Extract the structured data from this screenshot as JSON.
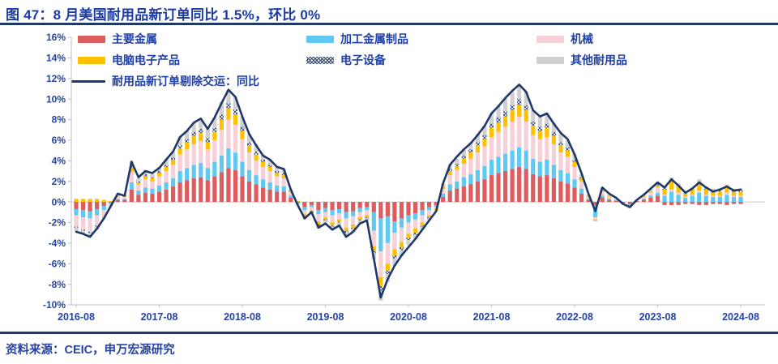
{
  "page": {
    "title": "图 47：8 月美国耐用品新订单同比 1.5%，环比 0%",
    "source": "资料来源：CEIC，申万宏源研究"
  },
  "colors": {
    "title_blue": "#1B3BA6",
    "text_blue": "#2545A5",
    "divider_navy": "#1F3864",
    "axis_gray": "#BFBFBF",
    "zero_gray": "#C9C9C9",
    "hatch": "#26406F"
  },
  "chart_data": {
    "type": "bar",
    "subtype": "stacked-monthly-bars-with-line",
    "title": "图 47：8 月美国耐用品新订单同比 1.5%，环比 0%",
    "xlabel": "",
    "ylabel": "",
    "ylim": [
      -10,
      16
    ],
    "grid": false,
    "legend_position": "top-left",
    "frequency": "monthly",
    "x_start": "2016-08",
    "x_end": "2024-08",
    "y_ticks": [
      {
        "value": 16,
        "label": "16%"
      },
      {
        "value": 14,
        "label": "14%"
      },
      {
        "value": 12,
        "label": "12%"
      },
      {
        "value": 10,
        "label": "10%"
      },
      {
        "value": 8,
        "label": "8%"
      },
      {
        "value": 6,
        "label": "6%"
      },
      {
        "value": 4,
        "label": "4%"
      },
      {
        "value": 2,
        "label": "2%"
      },
      {
        "value": 0,
        "label": "0%"
      },
      {
        "value": -2,
        "label": "-2%"
      },
      {
        "value": -4,
        "label": "-4%"
      },
      {
        "value": -6,
        "label": "-6%"
      },
      {
        "value": -8,
        "label": "-8%"
      },
      {
        "value": -10,
        "label": "-10%"
      }
    ],
    "x_ticks": [
      {
        "index": 0,
        "label": "2016-08"
      },
      {
        "index": 12,
        "label": "2017-08"
      },
      {
        "index": 24,
        "label": "2018-08"
      },
      {
        "index": 36,
        "label": "2019-08"
      },
      {
        "index": 48,
        "label": "2020-08"
      },
      {
        "index": 60,
        "label": "2021-08"
      },
      {
        "index": 72,
        "label": "2022-08"
      },
      {
        "index": 84,
        "label": "2023-08"
      },
      {
        "index": 96,
        "label": "2024-08"
      }
    ],
    "series": [
      {
        "key": "major-metals",
        "name": "主要金属",
        "type": "bar",
        "color": "#DE5C5E",
        "values": [
          -0.7,
          -0.8,
          -0.9,
          -0.7,
          -0.4,
          -0.1,
          0.2,
          0.2,
          1.2,
          0.7,
          0.9,
          0.8,
          1.0,
          1.2,
          1.5,
          1.9,
          2.1,
          2.3,
          2.4,
          2.1,
          2.5,
          2.9,
          3.3,
          3.1,
          2.5,
          2.0,
          1.7,
          1.4,
          1.2,
          1.0,
          1.0,
          0.4,
          -0.1,
          -0.5,
          -0.3,
          -0.8,
          -0.6,
          -0.8,
          -0.7,
          -1.0,
          -0.9,
          -0.6,
          -0.5,
          -1.0,
          -1.6,
          -1.4,
          -1.9,
          -1.6,
          -1.3,
          -1.1,
          -0.8,
          -0.5,
          -0.3,
          0.5,
          1.1,
          1.3,
          1.5,
          1.7,
          2.0,
          2.2,
          2.6,
          2.8,
          3.0,
          3.2,
          3.4,
          3.2,
          2.7,
          2.5,
          2.6,
          2.3,
          2.0,
          1.8,
          1.4,
          0.8,
          0.2,
          -0.3,
          0.4,
          0.2,
          0.1,
          -0.1,
          -0.2,
          0.1,
          0.2,
          0.4,
          0.6,
          -0.3,
          -0.3,
          -0.3,
          -0.2,
          -0.2,
          -0.3,
          -0.3,
          -0.2,
          -0.2,
          -0.3,
          -0.2,
          -0.2
        ]
      },
      {
        "key": "fabricated-metal",
        "name": "加工金属制品",
        "type": "bar",
        "color": "#5FC8F3",
        "values": [
          -0.6,
          -0.7,
          -0.7,
          -0.6,
          -0.4,
          -0.1,
          0.1,
          0.1,
          0.7,
          0.4,
          0.5,
          0.5,
          0.6,
          0.7,
          0.8,
          1.1,
          1.2,
          1.3,
          1.4,
          1.2,
          1.4,
          1.6,
          1.9,
          1.7,
          1.4,
          1.1,
          0.9,
          0.8,
          0.7,
          0.6,
          0.5,
          0.2,
          -0.1,
          -0.3,
          -0.2,
          -0.4,
          -0.4,
          -0.5,
          -0.4,
          -0.6,
          -0.5,
          -0.4,
          -0.3,
          -1.8,
          -3.2,
          -2.6,
          -1.1,
          -0.9,
          -0.7,
          -0.6,
          -0.5,
          -0.3,
          -0.2,
          0.3,
          0.6,
          0.7,
          0.9,
          1.0,
          1.1,
          1.3,
          1.5,
          1.6,
          1.7,
          1.8,
          1.9,
          1.8,
          1.5,
          1.4,
          1.5,
          1.3,
          1.1,
          1.0,
          0.8,
          0.5,
          0.1,
          -1.2,
          0.2,
          0.1,
          0.1,
          0.0,
          -0.1,
          0.0,
          0.1,
          0.2,
          0.3,
          0.6,
          1.0,
          0.7,
          0.4,
          0.6,
          0.9,
          0.6,
          0.5,
          0.5,
          0.7,
          0.5,
          0.5
        ]
      },
      {
        "key": "machinery",
        "name": "机械",
        "type": "bar",
        "color": "#F7CFD6",
        "values": [
          -1.1,
          -1.2,
          -1.3,
          -1.0,
          -0.6,
          -0.2,
          0.2,
          0.2,
          1.0,
          0.6,
          0.8,
          0.7,
          0.9,
          1.1,
          1.3,
          1.6,
          1.8,
          2.0,
          2.1,
          1.8,
          2.1,
          2.5,
          2.8,
          2.7,
          2.2,
          1.7,
          1.4,
          1.2,
          1.1,
          0.9,
          0.8,
          0.3,
          -0.1,
          -0.4,
          -0.3,
          -0.7,
          -0.5,
          -0.7,
          -0.6,
          -0.9,
          -0.8,
          -0.5,
          -0.5,
          -1.5,
          -2.5,
          -2.0,
          -1.6,
          -1.4,
          -1.1,
          -0.9,
          -0.7,
          -0.5,
          -0.2,
          0.5,
          0.9,
          1.1,
          1.3,
          1.5,
          1.7,
          1.9,
          2.2,
          2.4,
          2.6,
          2.8,
          3.0,
          2.8,
          2.3,
          2.2,
          2.2,
          2.0,
          1.7,
          1.6,
          1.2,
          0.7,
          0.2,
          -0.2,
          0.4,
          0.2,
          0.1,
          -0.1,
          -0.1,
          0.1,
          0.2,
          0.3,
          0.5,
          0.1,
          0.2,
          0.2,
          0.1,
          0.1,
          0.2,
          0.1,
          0.1,
          0.1,
          0.2,
          0.1,
          0.1
        ]
      },
      {
        "key": "computer-electronics",
        "name": "电脑电子产品",
        "type": "bar",
        "color": "#FFC000",
        "values": [
          0.3,
          0.3,
          0.3,
          0.3,
          0.2,
          0.1,
          0.1,
          0.1,
          0.4,
          0.2,
          0.3,
          0.3,
          0.3,
          0.4,
          0.5,
          0.6,
          0.7,
          0.8,
          0.8,
          0.7,
          0.8,
          1.0,
          1.1,
          1.0,
          0.8,
          0.7,
          0.6,
          0.5,
          0.4,
          0.3,
          0.3,
          0.1,
          0.1,
          -0.2,
          -0.1,
          -0.3,
          -0.2,
          -0.3,
          -0.2,
          -0.3,
          -0.3,
          -0.2,
          -0.2,
          -0.5,
          -0.9,
          -0.7,
          -0.6,
          -0.5,
          -0.4,
          -0.4,
          -0.3,
          -0.2,
          -0.1,
          0.2,
          0.4,
          0.4,
          0.5,
          0.6,
          0.7,
          0.7,
          0.9,
          0.9,
          1.0,
          1.1,
          1.1,
          1.1,
          0.9,
          0.8,
          0.9,
          0.8,
          0.7,
          0.6,
          0.5,
          0.3,
          0.1,
          -0.1,
          0.1,
          0.1,
          0.0,
          0.0,
          -0.1,
          0.0,
          0.1,
          0.1,
          0.2,
          0.5,
          0.8,
          0.6,
          0.3,
          0.5,
          0.7,
          0.5,
          0.4,
          0.4,
          0.5,
          0.4,
          0.4
        ]
      },
      {
        "key": "electrical-equipment",
        "name": "电子设备",
        "type": "bar",
        "color": "#26406F",
        "pattern": "cross-hatch",
        "values": [
          -0.1,
          -0.1,
          -0.1,
          -0.1,
          0.0,
          0.0,
          0.0,
          0.0,
          0.2,
          0.1,
          0.2,
          0.1,
          0.2,
          0.2,
          0.2,
          0.3,
          0.3,
          0.4,
          0.4,
          0.4,
          0.4,
          0.5,
          0.5,
          0.5,
          0.4,
          0.3,
          0.3,
          0.2,
          0.2,
          0.2,
          0.2,
          0.1,
          0.0,
          -0.1,
          -0.1,
          -0.1,
          -0.1,
          -0.1,
          -0.1,
          -0.2,
          -0.1,
          -0.1,
          -0.1,
          -0.2,
          -0.4,
          -0.3,
          -0.3,
          -0.3,
          -0.2,
          -0.2,
          -0.1,
          -0.1,
          0.0,
          0.1,
          0.2,
          0.2,
          0.3,
          0.3,
          0.3,
          0.4,
          0.4,
          0.5,
          0.5,
          0.5,
          0.6,
          0.5,
          0.4,
          0.4,
          0.4,
          0.4,
          0.3,
          0.3,
          0.2,
          0.1,
          0.0,
          0.0,
          0.1,
          0.0,
          0.0,
          0.0,
          0.0,
          0.0,
          0.0,
          0.0,
          0.1,
          0.1,
          0.1,
          0.1,
          0.1,
          0.0,
          0.1,
          0.1,
          0.1,
          0.1,
          0.1,
          0.1,
          0.1
        ]
      },
      {
        "key": "other-durables",
        "name": "其他耐用品",
        "type": "bar",
        "color": "#D1CFCF",
        "values": [
          -0.3,
          -0.4,
          -0.4,
          -0.3,
          -0.2,
          0.0,
          0.1,
          0.1,
          0.5,
          0.3,
          0.4,
          0.3,
          0.4,
          0.5,
          0.6,
          0.8,
          0.8,
          0.9,
          1.0,
          0.9,
          1.0,
          1.2,
          1.3,
          1.2,
          1.0,
          0.8,
          0.7,
          0.5,
          0.5,
          0.4,
          0.4,
          0.1,
          0.0,
          -0.2,
          -0.1,
          -0.3,
          -0.3,
          -0.3,
          -0.3,
          -0.4,
          -0.3,
          -0.3,
          -0.2,
          -0.6,
          -1.0,
          -0.8,
          -0.7,
          -0.6,
          -0.5,
          -0.4,
          -0.3,
          -0.2,
          -0.1,
          0.2,
          0.4,
          0.5,
          0.6,
          0.7,
          0.8,
          0.9,
          1.0,
          1.1,
          1.2,
          1.3,
          1.4,
          1.3,
          1.1,
          1.0,
          1.0,
          0.9,
          0.8,
          0.7,
          0.6,
          0.3,
          0.1,
          -0.1,
          0.2,
          0.1,
          0.0,
          0.0,
          -0.1,
          0.0,
          0.1,
          0.2,
          0.2,
          0.2,
          0.3,
          0.2,
          0.1,
          0.2,
          0.3,
          0.2,
          0.2,
          0.2,
          0.2,
          0.2,
          0.2
        ]
      },
      {
        "key": "ex-transport-yoy",
        "name": "耐用品新订单剔除交运：同比",
        "type": "line",
        "color": "#1F3868",
        "values": [
          -2.9,
          -3.1,
          -3.4,
          -2.6,
          -1.6,
          -0.4,
          0.8,
          0.6,
          3.9,
          2.4,
          3.0,
          2.8,
          3.3,
          4.1,
          4.9,
          6.3,
          6.9,
          7.7,
          8.1,
          7.1,
          8.2,
          9.6,
          10.9,
          10.2,
          8.3,
          6.6,
          5.5,
          4.5,
          4.1,
          3.4,
          3.2,
          1.2,
          -0.3,
          -1.6,
          -1.0,
          -2.5,
          -2.1,
          -2.7,
          -2.3,
          -3.4,
          -2.9,
          -2.1,
          -1.8,
          -5.5,
          -9.3,
          -7.5,
          -6.2,
          -5.2,
          -4.4,
          -3.6,
          -2.7,
          -1.8,
          -0.9,
          1.8,
          3.6,
          4.4,
          5.1,
          5.7,
          6.5,
          7.4,
          8.6,
          9.3,
          10.1,
          10.8,
          11.4,
          10.7,
          8.9,
          8.3,
          8.6,
          7.6,
          6.7,
          6.1,
          4.6,
          2.8,
          0.8,
          -0.9,
          1.4,
          0.8,
          0.4,
          -0.2,
          -0.5,
          0.2,
          0.7,
          1.3,
          1.9,
          1.4,
          2.2,
          1.6,
          0.9,
          1.3,
          1.9,
          1.4,
          1.0,
          1.2,
          1.5,
          1.1,
          1.2
        ]
      }
    ]
  }
}
